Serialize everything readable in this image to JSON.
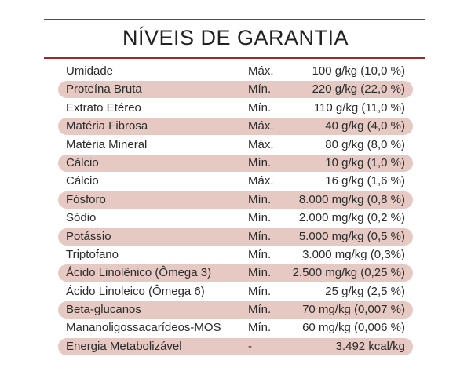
{
  "title": "NÍVEIS DE GARANTIA",
  "colors": {
    "rule": "#9e2a2b",
    "row_shade": "#e6c9c3"
  },
  "rows": [
    {
      "name": "Umidade",
      "type": "Máx.",
      "value": "100 g/kg (10,0 %)"
    },
    {
      "name": "Proteína Bruta",
      "type": "Mín.",
      "value": "220 g/kg (22,0 %)"
    },
    {
      "name": "Extrato Etéreo",
      "type": "Mín.",
      "value": "110 g/kg (11,0 %)"
    },
    {
      "name": "Matéria Fibrosa",
      "type": "Máx.",
      "value": "40 g/kg (4,0 %)"
    },
    {
      "name": "Matéria Mineral",
      "type": "Máx.",
      "value": "80 g/kg (8,0 %)"
    },
    {
      "name": "Cálcio",
      "type": "Mín.",
      "value": "10 g/kg (1,0 %)"
    },
    {
      "name": "Cálcio",
      "type": "Máx.",
      "value": "16 g/kg (1,6 %)"
    },
    {
      "name": "Fósforo",
      "type": "Mín.",
      "value": "8.000 mg/kg (0,8 %)"
    },
    {
      "name": "Sódio",
      "type": "Mín.",
      "value": "2.000 mg/kg (0,2 %)"
    },
    {
      "name": "Potássio",
      "type": "Mín.",
      "value": "5.000 mg/kg (0,5 %)"
    },
    {
      "name": "Triptofano",
      "type": "Mín.",
      "value": "3.000 mg/kg (0,3%)"
    },
    {
      "name": "Ácido Linolênico (Ômega 3)",
      "type": "Mín.",
      "value": "2.500 mg/kg (0,25 %)"
    },
    {
      "name": "Ácido Linoleico (Ômega 6)",
      "type": "Mín.",
      "value": "25 g/kg (2,5 %)"
    },
    {
      "name": "Beta-glucanos",
      "type": "Mín.",
      "value": "70 mg/kg (0,007 %)"
    },
    {
      "name": "Mananoligossacarídeos-MOS",
      "type": "Mín.",
      "value": "60 mg/kg (0,006 %)"
    },
    {
      "name": "Energia Metabolizável",
      "type": "-",
      "value": "3.492 kcal/kg"
    }
  ]
}
